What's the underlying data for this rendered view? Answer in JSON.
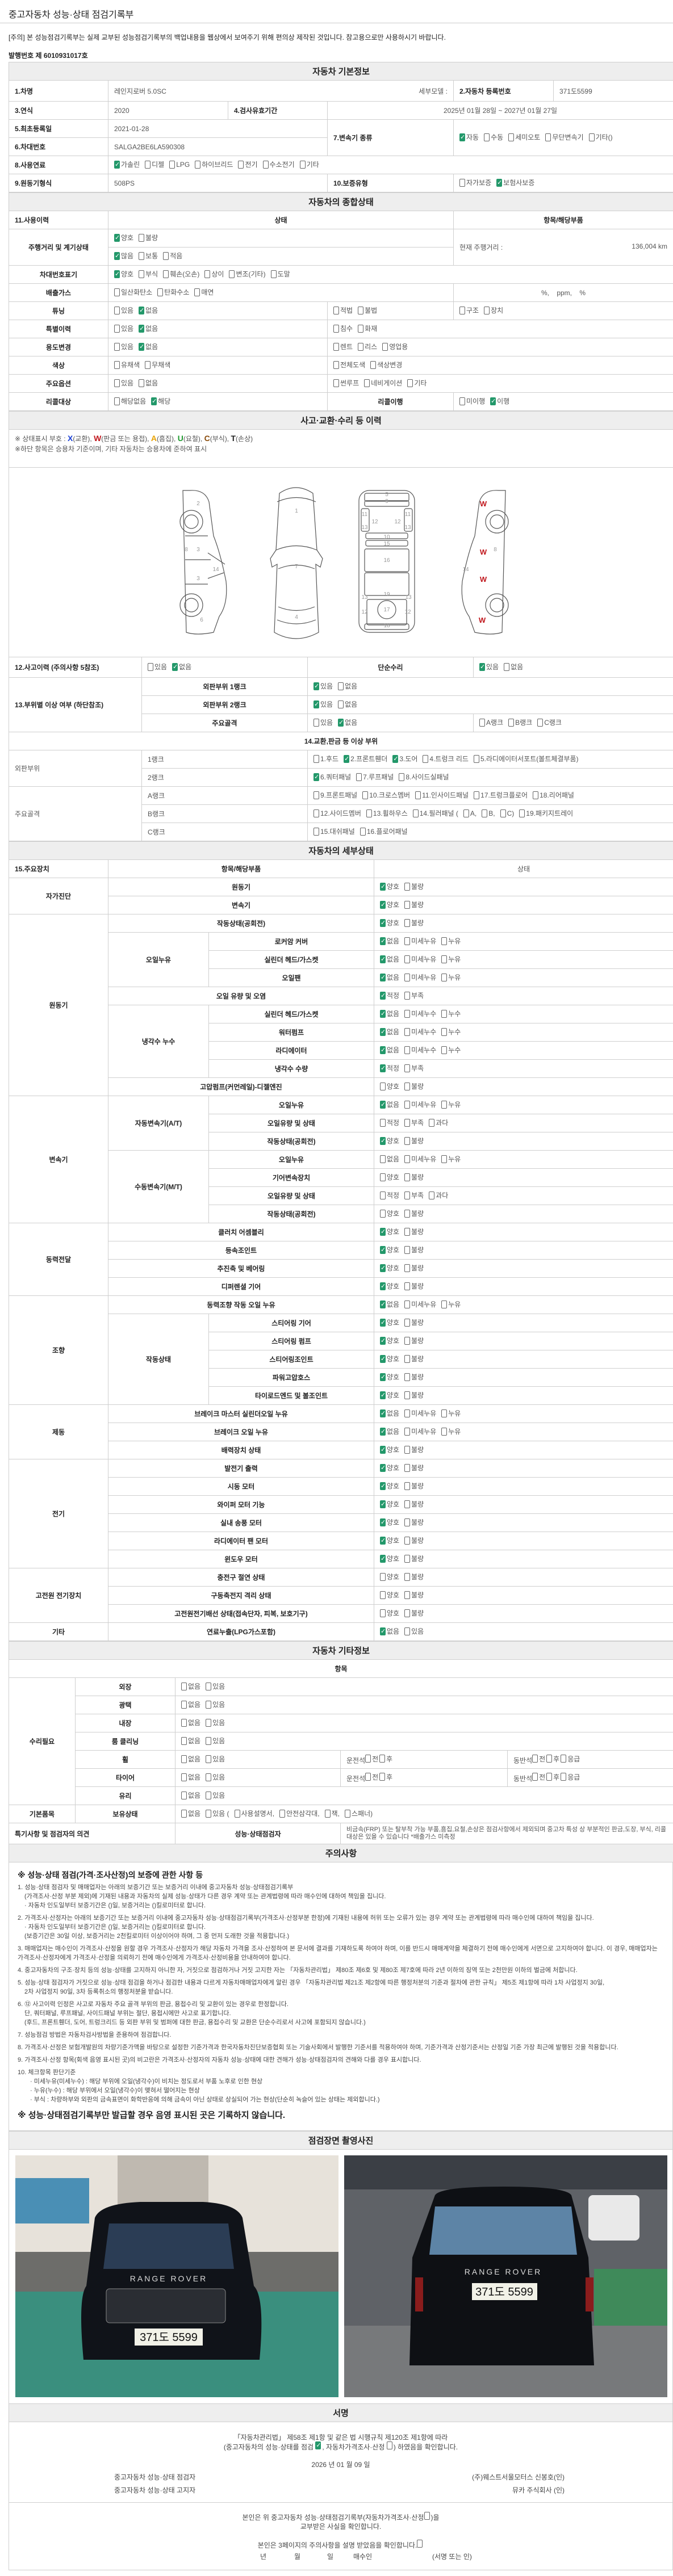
{
  "page_title": "중고자동차 성능·상태 점검기록부",
  "notice": "[주의] 본 성능점검기록부는 실제 교부된 성능점검기록부의 백업내용을 웹상에서 보여주기 위해 편의상 제작된 것입니다. 참고용으로만 사용하시기 바랍니다.",
  "issue_no": "발행번호 제 6010931017호",
  "colors": {
    "checked": "#23986a",
    "X": "#1a3fd6",
    "W": "#c0161c",
    "A": "#e8a100",
    "U": "#1e9a2e",
    "C": "#8a4b0a",
    "T": "#222222"
  },
  "basic": {
    "header": "자동차 기본정보",
    "car_name_label": "1.차명",
    "car_name": "레인지로버 5.0SC",
    "sub_model_label": "세부모델 :",
    "reg_no_label": "2.자동차 등록번호",
    "reg_no": "371도5599",
    "year_label": "3.연식",
    "year": "2020",
    "validity_label": "4.검사유효기간",
    "validity": "2025년 01월 28일 ~ 2027년 01월 27일",
    "first_reg_label": "5.최초등록일",
    "first_reg": "2021-01-28",
    "vin_label": "6.차대번호",
    "vin": "SALGA2BE6LA590308",
    "transmission_label": "7.변속기 종류",
    "transmission": {
      "opts": [
        "자동",
        "수동",
        "세미오토",
        "무단변속기",
        "기타()"
      ],
      "on": [
        0
      ]
    },
    "fuel_label": "8.사용연료",
    "fuel": {
      "opts": [
        "가솔린",
        "디젤",
        "LPG",
        "하이브리드",
        "전기",
        "수소전기",
        "기타"
      ],
      "on": [
        0
      ]
    },
    "engine_label": "9.원동기형식",
    "engine": "508PS",
    "warranty_label": "10.보증유형",
    "warranty": {
      "opts": [
        "자가보증",
        "보험사보증"
      ],
      "on": [
        1
      ]
    }
  },
  "general": {
    "header": "자동차의 종합상태",
    "col1": "11.사용이력",
    "col2": "상태",
    "col3": "항목/해당부품",
    "mileage_label": "주행거리 및 계기상태",
    "gauge": {
      "opts": [
        "양호",
        "불량"
      ],
      "on": [
        0
      ]
    },
    "mileage_level": {
      "opts": [
        "많음",
        "보통",
        "적음"
      ],
      "on": [
        0
      ]
    },
    "current_mileage_label": "현재 주행거리 :",
    "current_mileage": "136,004 km",
    "vin_mark_label": "차대번호표기",
    "vin_mark": {
      "opts": [
        "양호",
        "부식",
        "훼손(오손)",
        "상이",
        "변조(기타)",
        "도말"
      ],
      "on": [
        0
      ]
    },
    "emission_label": "배출가스",
    "emission": {
      "opts": [
        "일산화탄소",
        "탄화수소",
        "매연"
      ],
      "on": []
    },
    "emission_units": "%,    ppm,    %",
    "tuning_label": "튜닝",
    "tuning": {
      "opts": [
        "있음",
        "없음"
      ],
      "on": [
        1
      ]
    },
    "tuning_legal": {
      "opts": [
        "적법",
        "불법"
      ],
      "on": []
    },
    "tuning_type": {
      "opts": [
        "구조",
        "장치"
      ],
      "on": []
    },
    "special_label": "특별이력",
    "special": {
      "opts": [
        "있음",
        "없음"
      ],
      "on": [
        1
      ]
    },
    "special_type": {
      "opts": [
        "침수",
        "화재"
      ],
      "on": []
    },
    "usage_label": "용도변경",
    "usage": {
      "opts": [
        "있음",
        "없음"
      ],
      "on": [
        1
      ]
    },
    "usage_type": {
      "opts": [
        "렌트",
        "리스",
        "영업용"
      ],
      "on": []
    },
    "color_label": "색상",
    "color": {
      "opts": [
        "유채색",
        "무채색"
      ],
      "on": []
    },
    "color_type": {
      "opts": [
        "전체도색",
        "색상변경"
      ],
      "on": []
    },
    "options_label": "주요옵션",
    "options": {
      "opts": [
        "있음",
        "없음"
      ],
      "on": []
    },
    "options_type": {
      "opts": [
        "썬루프",
        "네비게이션",
        "기타"
      ],
      "on": []
    },
    "recall_label": "리콜대상",
    "recall": {
      "opts": [
        "해당없음",
        "해당"
      ],
      "on": [
        1
      ]
    },
    "recall_done_label": "리콜이행",
    "recall_done": {
      "opts": [
        "미이행",
        "이행"
      ],
      "on": [
        1
      ]
    }
  },
  "accident": {
    "header": "사고·교환·수리 등 이력",
    "legend_prefix": "※ 상태표시 부호 : ",
    "legend": [
      {
        "code": "X",
        "text": "(교환), "
      },
      {
        "code": "W",
        "text": "(판금 또는 용접), "
      },
      {
        "code": "A",
        "text": "(흠집), "
      },
      {
        "code": "U",
        "text": "(요철), "
      },
      {
        "code": "C",
        "text": "(부식), "
      },
      {
        "code": "T",
        "text": "(손상)"
      }
    ],
    "legend_note": "※하단 항목은 승용차 기준이며, 기타 자동차는 승용차에 준하여 표시",
    "diagram": {
      "left": [
        "2",
        "8",
        "3",
        "14",
        "3",
        "6"
      ],
      "top": [
        "1",
        "7",
        "4"
      ],
      "bottom": [
        "5",
        "9",
        "11",
        "11",
        "12",
        "12",
        "13",
        "13",
        "10",
        "15",
        "16",
        "19",
        "13",
        "13",
        "12",
        "17",
        "12",
        "18"
      ],
      "right": [
        "8",
        "14"
      ],
      "marks": [
        "W",
        "W",
        "W",
        "W"
      ]
    },
    "history_label": "12.사고이력 (주의사항 5참조)",
    "history": {
      "opts": [
        "있음",
        "없음"
      ],
      "on": [
        1
      ]
    },
    "simple_label": "단순수리",
    "simple": {
      "opts": [
        "있음",
        "없음"
      ],
      "on": [
        0
      ]
    },
    "parts_label": "13.부위별 이상 여부 (하단참조)",
    "outer1_label": "외판부위 1랭크",
    "outer1": {
      "opts": [
        "있음",
        "없음"
      ],
      "on": [
        0
      ]
    },
    "outer2_label": "외판부위 2랭크",
    "outer2": {
      "opts": [
        "있음",
        "없음"
      ],
      "on": [
        0
      ]
    },
    "frame_label": "주요골격",
    "frame": {
      "opts": [
        "있음",
        "없음"
      ],
      "on": [
        1
      ]
    },
    "frame_rank": {
      "opts": [
        "A랭크",
        "B랭크",
        "C랭크"
      ],
      "on": []
    },
    "parts_header": "14.교환,판금 등 이상 부위",
    "outer_group": "외판부위",
    "frame_group": "주요골격",
    "rank1_label": "1랭크",
    "rank1": {
      "opts": [
        "1.후드",
        "2.프론트휀더",
        "3.도어",
        "4.트렁크 리드",
        "5.라디에이터서포트(볼트체결부품)"
      ],
      "on": [
        1,
        2
      ]
    },
    "rank2_label": "2랭크",
    "rank2": {
      "opts": [
        "6.쿼터패널",
        "7.루프패널",
        "8.사이드실패널"
      ],
      "on": [
        0
      ]
    },
    "rankA_label": "A랭크",
    "rankA": {
      "opts": [
        "9.프론트패널",
        "10.크로스멤버",
        "11.인사이드패널",
        "17.트렁크플로어",
        "18.리어패널"
      ],
      "on": []
    },
    "rankB_label": "B랭크",
    "rankB": {
      "opts": [
        "12.사이드멤버",
        "13.휠하우스",
        "14.필러패널 (",
        "A,",
        "B,",
        "C)",
        "19.패키지트레이"
      ],
      "on": []
    },
    "rankC_label": "C랭크",
    "rankC": {
      "opts": [
        "15.대쉬패널",
        "16.플로어패널"
      ],
      "on": []
    }
  },
  "detail": {
    "header": "자동차의 세부상태",
    "col1": "15.주요장치",
    "col2": "항목/해당부품",
    "col3": "상태",
    "opt_sets": {
      "yb": [
        "양호",
        "불량"
      ],
      "leak": [
        "없음",
        "미세누유",
        "누유"
      ],
      "cool": [
        "없음",
        "미세누수",
        "누수"
      ],
      "level": [
        "적정",
        "부족"
      ],
      "level3": [
        "적정",
        "부족",
        "과다"
      ],
      "fuel": [
        "없음",
        "있음"
      ]
    },
    "rows": [
      {
        "group": "자가진단",
        "item": "원동기",
        "opts": "yb",
        "on": [
          0
        ]
      },
      {
        "group": "자가진단",
        "item": "변속기",
        "opts": "yb",
        "on": [
          0
        ]
      },
      {
        "group": "원동기",
        "item": "작동상태(공회전)",
        "opts": "yb",
        "on": [
          0
        ]
      },
      {
        "group": "원동기",
        "sub": "오일누유",
        "item": "로커암 커버",
        "opts": "leak",
        "on": [
          0
        ]
      },
      {
        "group": "원동기",
        "sub": "오일누유",
        "item": "실린더 헤드/가스켓",
        "opts": "leak",
        "on": [
          0
        ]
      },
      {
        "group": "원동기",
        "sub": "오일누유",
        "item": "오일팬",
        "opts": "leak",
        "on": [
          0
        ]
      },
      {
        "group": "원동기",
        "item": "오일 유량 및 오염",
        "opts": "level",
        "on": [
          0
        ]
      },
      {
        "group": "원동기",
        "sub": "냉각수 누수",
        "item": "실린더 헤드/가스켓",
        "opts": "cool",
        "on": [
          0
        ]
      },
      {
        "group": "원동기",
        "sub": "냉각수 누수",
        "item": "워터펌프",
        "opts": "cool",
        "on": [
          0
        ]
      },
      {
        "group": "원동기",
        "sub": "냉각수 누수",
        "item": "라디에이터",
        "opts": "cool",
        "on": [
          0
        ]
      },
      {
        "group": "원동기",
        "sub": "냉각수 누수",
        "item": "냉각수 수량",
        "opts": "level",
        "on": [
          0
        ]
      },
      {
        "group": "원동기",
        "item": "고압펌프(커먼레일)-디젤엔진",
        "opts": "yb",
        "on": []
      },
      {
        "group": "변속기",
        "sub": "자동변속기(A/T)",
        "item": "오일누유",
        "opts": "leak",
        "on": [
          0
        ]
      },
      {
        "group": "변속기",
        "sub": "자동변속기(A/T)",
        "item": "오일유량 및 상태",
        "opts": "level3",
        "on": []
      },
      {
        "group": "변속기",
        "sub": "자동변속기(A/T)",
        "item": "작동상태(공회전)",
        "opts": "yb",
        "on": [
          0
        ]
      },
      {
        "group": "변속기",
        "sub": "수동변속기(M/T)",
        "item": "오일누유",
        "opts": "leak",
        "on": []
      },
      {
        "group": "변속기",
        "sub": "수동변속기(M/T)",
        "item": "기어변속장치",
        "opts": "yb",
        "on": []
      },
      {
        "group": "변속기",
        "sub": "수동변속기(M/T)",
        "item": "오일유량 및 상태",
        "opts": "level3",
        "on": []
      },
      {
        "group": "변속기",
        "sub": "수동변속기(M/T)",
        "item": "작동상태(공회전)",
        "opts": "yb",
        "on": []
      },
      {
        "group": "동력전달",
        "item": "클러치 어셈블리",
        "opts": "yb",
        "on": [
          0
        ]
      },
      {
        "group": "동력전달",
        "item": "등속조인트",
        "opts": "yb",
        "on": [
          0
        ]
      },
      {
        "group": "동력전달",
        "item": "추진축 및 베어링",
        "opts": "yb",
        "on": [
          0
        ]
      },
      {
        "group": "동력전달",
        "item": "디퍼렌셜 기어",
        "opts": "yb",
        "on": [
          0
        ]
      },
      {
        "group": "조향",
        "item": "동력조향 작동 오일 누유",
        "opts": "leak",
        "on": [
          0
        ]
      },
      {
        "group": "조향",
        "sub": "작동상태",
        "item": "스티어링 기어",
        "opts": "yb",
        "on": [
          0
        ]
      },
      {
        "group": "조향",
        "sub": "작동상태",
        "item": "스티어링 펌프",
        "opts": "yb",
        "on": [
          0
        ]
      },
      {
        "group": "조향",
        "sub": "작동상태",
        "item": "스티어링조인트",
        "opts": "yb",
        "on": [
          0
        ]
      },
      {
        "group": "조향",
        "sub": "작동상태",
        "item": "파워고압호스",
        "opts": "yb",
        "on": [
          0
        ]
      },
      {
        "group": "조향",
        "sub": "작동상태",
        "item": "타이로드엔드 및 볼조인트",
        "opts": "yb",
        "on": [
          0
        ]
      },
      {
        "group": "제동",
        "item": "브레이크 마스터 실린더오일 누유",
        "opts": "leak",
        "on": [
          0
        ]
      },
      {
        "group": "제동",
        "item": "브레이크 오일 누유",
        "opts": "leak",
        "on": [
          0
        ]
      },
      {
        "group": "제동",
        "item": "배력장치 상태",
        "opts": "yb",
        "on": [
          0
        ]
      },
      {
        "group": "전기",
        "item": "발전기 출력",
        "opts": "yb",
        "on": [
          0
        ]
      },
      {
        "group": "전기",
        "item": "시동 모터",
        "opts": "yb",
        "on": [
          0
        ]
      },
      {
        "group": "전기",
        "item": "와이퍼 모터 기능",
        "opts": "yb",
        "on": [
          0
        ]
      },
      {
        "group": "전기",
        "item": "실내 송풍 모터",
        "opts": "yb",
        "on": [
          0
        ]
      },
      {
        "group": "전기",
        "item": "라디에이터 팬 모터",
        "opts": "yb",
        "on": [
          0
        ]
      },
      {
        "group": "전기",
        "item": "윈도우 모터",
        "opts": "yb",
        "on": [
          0
        ]
      },
      {
        "group": "고전원 전기장치",
        "item": "충전구 절연 상태",
        "opts": "yb",
        "on": []
      },
      {
        "group": "고전원 전기장치",
        "item": "구동축전지 격리 상태",
        "opts": "yb",
        "on": []
      },
      {
        "group": "고전원 전기장치",
        "item": "고전원전기배선 상태(접속단자, 피복, 보호기구)",
        "opts": "yb",
        "on": []
      },
      {
        "group": "기타",
        "item": "연료누출(LPG가스포함)",
        "opts": "fuel",
        "on": [
          0
        ]
      }
    ]
  },
  "other": {
    "header": "자동차 기타정보",
    "item_header": "항목",
    "repair_label": "수리필요",
    "yn": [
      "없음",
      "있음"
    ],
    "repair": [
      {
        "name": "외장",
        "on": []
      },
      {
        "name": "광택",
        "on": []
      },
      {
        "name": "내장",
        "on": []
      },
      {
        "name": "룸 클리닝",
        "on": []
      },
      {
        "name": "휠",
        "on": [],
        "driver_label": "운전석",
        "driver": {
          "opts": [
            "전",
            "후"
          ],
          "on": []
        },
        "passenger_label": "동반석",
        "passenger": {
          "opts": [
            "전",
            "후",
            "응급"
          ],
          "on": []
        }
      },
      {
        "name": "타이어",
        "on": [],
        "driver_label": "운전석",
        "driver": {
          "opts": [
            "전",
            "후"
          ],
          "on": []
        },
        "passenger_label": "동반석",
        "passenger": {
          "opts": [
            "전",
            "후",
            "응급"
          ],
          "on": []
        }
      },
      {
        "name": "유리",
        "on": []
      }
    ],
    "basic_items_label": "기본품목",
    "hold_label": "보유상태",
    "hold": {
      "opts": [
        "없음",
        "있음 (",
        "사용설명서,",
        "안전삼각대,",
        "잭,",
        "스패너)"
      ],
      "on": []
    },
    "remarks_label": "특기사항 및 점검자의 의견",
    "inspector_label": "성능·상태점검자",
    "remarks": "비금속(FRP) 또는 탈부착 가능 부품,흠집,요철,손상은 점검사항에서 제외되며 중고차 특성 상 부분적인 판금,도장, 부식, 리콜대상은 있을 수 있습니다 *배출가스 미측정"
  },
  "notes": {
    "header": "주의사항",
    "heading": "※ 성능·상태 점검(가격·조사산정)의 보증에 관한 사항 등",
    "paragraphs": [
      [
        "1. 성능·상태 점검자 및 매매업자는 아래의 보증기간 또는 보증거리 이내에 중고자동차 성능·상태점검기록부",
        "(가격조사·산정 부분 제외)에 기재된 내용과 자동차의 실제 성능·상태가 다른 경우 계약 또는 관계법령에 따라 매수인에 대하여 책임을 집니다.",
        "· 자동차 인도일부터 보증기간은 ()일, 보증거리는 ()킬로미터로 합니다."
      ],
      [
        "2. 가격조사·산정자는 아래의 보증기간 또는 보증거리 이내에 중고자동차 성능·상태점검기록부(가격조사·산정부분 한정)에 기재된 내용에 허위 또는 오류가 있는 경우 계약 또는 관계법령에 따라 매수인에 대하여 책임을 집니다.",
        "· 자동차 인도일부터 보증기간은 ()일, 보증거리는 ()킬로미터로 합니다.",
        "(보증기간은 30일 이상, 보증거리는 2천킬로미터 이상이어야 하며, 그 중 먼저 도래한 것을 적용합니다.)"
      ],
      [
        "3. 매매업자는 매수인이 가격조사·산정을 원할 경우 가격조사·산정자가 해당 자동차 가격을 조사·산정하여 본 문서에 결과를 기재하도록 하여야 하며, 이를 반드시 매매계약을 체결하기 전에 매수인에게 서면으로 고지하여야 합니다. 이 경우, 매매업자는 가격조사·산정자에게 가격조사·산정을 의뢰하기 전에 매수인에게 가격조사·산정비용을 안내하여야 합니다."
      ],
      [
        "4. 중고자동차의 구조·장치 등의 성능·상태를 고지하지 아니한 자, 거짓으로 점검하거나 거짓 고지한 자는 「자동차관리법」 제80조 제6호 및 제80조 제7호에 따라 2년 이하의 징역 또는 2천만원 이하의 벌금에 처합니다."
      ],
      [
        "5. 성능·상태 점검자가 거짓으로 성능·상태 점검을 하거나 점검한 내용과 다르게 자동차매매업자에게 알린 경우 「자동차관리법 제21조 제2항에 따른 행정처분의 기준과 절차에 관한 규칙」 제5조 제1항에 따라 1차 사업정지 30일,",
        "2차 사업정지 90일, 3차 등록취소의 행정처분을 받습니다."
      ],
      [
        "6. ⑫ 사고이력 인정은 사고로 자동차 주요 골격 부위의 판금, 용접수리 및 교환이 있는 경우로 한정합니다.",
        "단, 쿼터패널, 루프패널, 사이드패널 부위는 절단, 용접시에만 사고로 표기합니다.",
        "(후드, 프론트휀더, 도어, 트렁크리드 등 외판 부위 및 범퍼에 대한 판금, 용접수리 및 교환은 단순수리로서 사고에 포함되지 않습니다.)"
      ],
      [
        "7. 성능점검 방법은 자동차검사방법을 준용하여 점검합니다."
      ],
      [
        "8. 가격조사·산정은 보험개발원의 차량기준가액을 바탕으로 설정한 기준가격과 한국자동차진단보증협회 또는 기술사회에서 발행한 기준서를 적용하여야 하며, 기준가격과 산정기준서는 산정일 기준 가장 최근에 발행된 것을 적용합니다."
      ],
      [
        "9. 가격조사·산정 항목(회색 음영 표시된 곳)의 비고란은 가격조사·산정자의 자동차 성능·상태에 대한 견해가 성능·상태점검자의 견해와 다를 경우 표시합니다."
      ],
      [
        "10. 체크항목 판단기준",
        "· 미세누유(미세누수) : 해당 부위에 오일(냉각수)이 비치는 정도로서 부품 노후로 인한 현상",
        "· 누유(누수) : 해당 부위에서 오일(냉각수)이 맺혀서 떨어지는 현상",
        "· 부식 : 차량하부와 외판의 금속표면이 화학반응에 의해 금속이 아닌 상태로 상실되어 가는 현상(단순히 녹슬어 있는 상태는 제외합니다.)"
      ]
    ],
    "final": "※ 성능·상태점검기록부만 발급할 경우 음영 표시된 곳은 기록하지 않습니다."
  },
  "photos": {
    "header": "점검장면 촬영사진",
    "items": [
      {
        "brand": "RANGE ROVER",
        "plate": "371도 5599",
        "view": "front"
      },
      {
        "brand": "RANGE ROVER",
        "plate": "371도 5599",
        "view": "rear"
      }
    ]
  },
  "signature": {
    "header": "서명",
    "law": "「자동차관리법」 제58조 제1항 및 같은 법 시행규칙 제120조 제1항에 따라",
    "confirm_a": "(중고자동차의 성능·상태를 점검",
    "confirm_a_checked": true,
    "confirm_b": ", 자동차가격조사·산정",
    "confirm_b_checked": false,
    "confirm_c": ") 하였음을 확인합니다.",
    "date": "2026 년 01 월 09 일",
    "inspector_label": "중고자동차 성능·상태 점검자",
    "inspector": "(주)웨스트서울모터스 신봉호(인)",
    "notifier_label": "중고자동차 성능·상태 고지자",
    "notifier": "뮤카 주식회사 (인)",
    "buyer_line1a": "본인은 위 중고자동차 성능·상태점검기록부(자동차가격조사·산정",
    "buyer_line1b": ")을",
    "buyer_line2": "교부받은 사실을 확인합니다.",
    "buyer_line3": "본인은 3페이지의 주의사항을 설명 받았음을 확인합니다.",
    "year_label": "년",
    "month_label": "월",
    "day_label": "일",
    "buyer_label": "매수인",
    "sign_label": "(서명 또는 인)"
  }
}
